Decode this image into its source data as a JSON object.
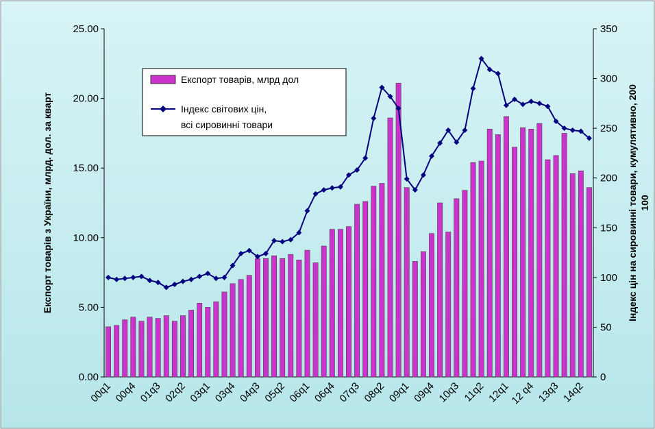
{
  "chart_data": {
    "type": "bar-line",
    "y_label": "Експорт товарів з України, млрд. дол. за кварт",
    "y2_label": [
      "Індекс цін на сировинні товари, кумулятивно, 200",
      "100"
    ],
    "categories": [
      "00q1",
      null,
      null,
      "00q4",
      null,
      null,
      "01q3",
      null,
      null,
      "02q2",
      null,
      null,
      "03q1",
      null,
      null,
      "03q4",
      null,
      null,
      "04q3",
      null,
      null,
      "05q2",
      null,
      null,
      "06q1",
      null,
      null,
      "06q4",
      null,
      null,
      "07q3",
      null,
      null,
      "08q2",
      null,
      null,
      "09q1",
      null,
      null,
      "09q4",
      null,
      null,
      "10q3",
      null,
      null,
      "11q2",
      null,
      null,
      "12q1",
      null,
      null,
      "12 q4",
      null,
      null,
      "13q3",
      null,
      null,
      "14q2",
      null
    ],
    "series": [
      {
        "name": "Експорт товарів, млрд дол",
        "color": "#cc33cc",
        "values": [
          3.6,
          3.7,
          4.1,
          4.3,
          4.0,
          4.3,
          4.2,
          4.4,
          4.0,
          4.4,
          4.8,
          5.3,
          5.0,
          5.4,
          6.1,
          6.7,
          7.0,
          7.3,
          8.5,
          8.5,
          8.7,
          8.5,
          8.8,
          8.4,
          9.1,
          8.2,
          9.4,
          10.6,
          10.6,
          10.8,
          12.4,
          12.6,
          13.7,
          13.9,
          18.6,
          21.1,
          13.6,
          8.3,
          9.0,
          10.3,
          12.5,
          10.4,
          12.8,
          13.4,
          15.4,
          15.5,
          17.8,
          17.4,
          18.7,
          16.5,
          17.9,
          17.8,
          18.2,
          15.6,
          15.9,
          17.5,
          14.6,
          14.8,
          13.6
        ]
      },
      {
        "name": "Індекс світових цін, всі сировинні товари",
        "color": "#000080",
        "axis": "y2",
        "values": [
          100,
          98,
          99,
          100,
          101,
          97,
          95,
          90,
          93,
          96,
          98,
          101,
          104,
          99,
          100,
          112,
          124,
          127,
          121,
          124,
          137,
          136,
          138,
          145,
          167,
          184,
          188,
          190,
          191,
          203,
          208,
          220,
          260,
          291,
          282,
          270,
          199,
          188,
          203,
          222,
          235,
          248,
          236,
          248,
          290,
          320,
          309,
          305,
          273,
          279,
          274,
          277,
          275,
          272,
          257,
          250,
          248,
          247,
          240
        ]
      }
    ],
    "ylim": [
      0,
      25
    ],
    "yticks": [
      {
        "value": 0,
        "label": "0.00"
      },
      {
        "value": 5,
        "label": "5.00"
      },
      {
        "value": 10,
        "label": "10.00"
      },
      {
        "value": 15,
        "label": "15.00"
      },
      {
        "value": 20,
        "label": "20.00"
      },
      {
        "value": 25,
        "label": "25.00"
      }
    ],
    "y2lim": [
      0,
      350
    ],
    "y2ticks": [
      0,
      50,
      100,
      150,
      200,
      250,
      300,
      350
    ]
  }
}
